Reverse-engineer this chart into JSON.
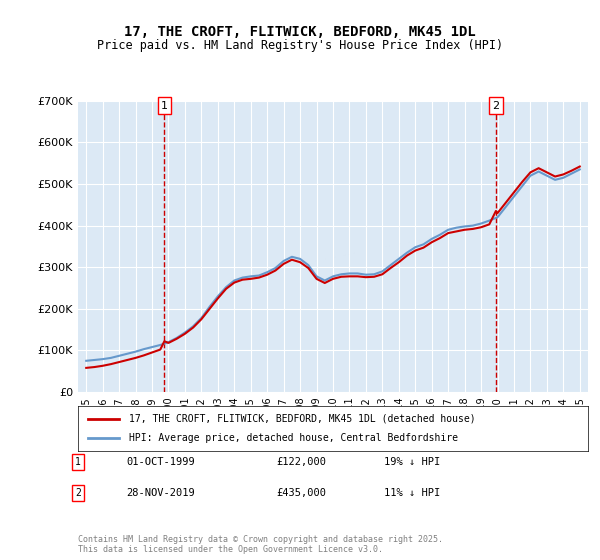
{
  "title_line1": "17, THE CROFT, FLITWICK, BEDFORD, MK45 1DL",
  "title_line2": "Price paid vs. HM Land Registry's House Price Index (HPI)",
  "ylabel": "",
  "background_color": "#dce9f5",
  "plot_bg_color": "#dce9f5",
  "grid_color": "#ffffff",
  "ylim": [
    0,
    700000
  ],
  "yticks": [
    0,
    100000,
    200000,
    300000,
    400000,
    500000,
    600000,
    700000
  ],
  "ytick_labels": [
    "£0",
    "£100K",
    "£200K",
    "£300K",
    "£400K",
    "£500K",
    "£600K",
    "£700K"
  ],
  "sale1_date": "01-OCT-1999",
  "sale1_price": 122000,
  "sale1_pct": "19% ↓ HPI",
  "sale1_x": 1999.75,
  "sale2_date": "28-NOV-2019",
  "sale2_price": 435000,
  "sale2_pct": "11% ↓ HPI",
  "sale2_x": 2019.9,
  "legend_line1": "17, THE CROFT, FLITWICK, BEDFORD, MK45 1DL (detached house)",
  "legend_line2": "HPI: Average price, detached house, Central Bedfordshire",
  "footer": "Contains HM Land Registry data © Crown copyright and database right 2025.\nThis data is licensed under the Open Government Licence v3.0.",
  "red_color": "#cc0000",
  "blue_color": "#6699cc",
  "vline_color": "#cc0000",
  "hpi_data_x": [
    1995.0,
    1995.5,
    1996.0,
    1996.5,
    1997.0,
    1997.5,
    1998.0,
    1998.5,
    1999.0,
    1999.5,
    2000.0,
    2000.5,
    2001.0,
    2001.5,
    2002.0,
    2002.5,
    2003.0,
    2003.5,
    2004.0,
    2004.5,
    2005.0,
    2005.5,
    2006.0,
    2006.5,
    2007.0,
    2007.5,
    2008.0,
    2008.5,
    2009.0,
    2009.5,
    2010.0,
    2010.5,
    2011.0,
    2011.5,
    2012.0,
    2012.5,
    2013.0,
    2013.5,
    2014.0,
    2014.5,
    2015.0,
    2015.5,
    2016.0,
    2016.5,
    2017.0,
    2017.5,
    2018.0,
    2018.5,
    2019.0,
    2019.5,
    2020.0,
    2020.5,
    2021.0,
    2021.5,
    2022.0,
    2022.5,
    2023.0,
    2023.5,
    2024.0,
    2024.5,
    2025.0
  ],
  "hpi_data_y": [
    75000,
    77000,
    79000,
    82000,
    87000,
    92000,
    97000,
    103000,
    108000,
    113000,
    120000,
    130000,
    143000,
    158000,
    178000,
    205000,
    230000,
    252000,
    268000,
    275000,
    278000,
    280000,
    288000,
    298000,
    315000,
    325000,
    320000,
    305000,
    278000,
    268000,
    278000,
    283000,
    285000,
    285000,
    282000,
    283000,
    290000,
    305000,
    320000,
    335000,
    348000,
    355000,
    368000,
    378000,
    390000,
    395000,
    398000,
    400000,
    405000,
    412000,
    420000,
    445000,
    470000,
    495000,
    520000,
    530000,
    520000,
    510000,
    515000,
    525000,
    535000
  ],
  "red_data_x": [
    1995.0,
    1995.5,
    1996.0,
    1996.5,
    1997.0,
    1997.5,
    1998.0,
    1998.5,
    1999.0,
    1999.5,
    1999.75,
    2000.0,
    2000.5,
    2001.0,
    2001.5,
    2002.0,
    2002.5,
    2003.0,
    2003.5,
    2004.0,
    2004.5,
    2005.0,
    2005.5,
    2006.0,
    2006.5,
    2007.0,
    2007.5,
    2008.0,
    2008.5,
    2009.0,
    2009.5,
    2010.0,
    2010.5,
    2011.0,
    2011.5,
    2012.0,
    2012.5,
    2013.0,
    2013.5,
    2014.0,
    2014.5,
    2015.0,
    2015.5,
    2016.0,
    2016.5,
    2017.0,
    2017.5,
    2018.0,
    2018.5,
    2019.0,
    2019.5,
    2019.9,
    2020.0,
    2020.5,
    2021.0,
    2021.5,
    2022.0,
    2022.5,
    2023.0,
    2023.5,
    2024.0,
    2024.5,
    2025.0
  ],
  "red_data_y": [
    58000,
    60000,
    63000,
    67000,
    72000,
    77000,
    82000,
    88000,
    95000,
    102000,
    122000,
    118000,
    128000,
    140000,
    155000,
    175000,
    200000,
    225000,
    248000,
    263000,
    270000,
    272000,
    275000,
    282000,
    292000,
    308000,
    318000,
    312000,
    298000,
    272000,
    262000,
    272000,
    277000,
    278000,
    278000,
    276000,
    277000,
    283000,
    298000,
    312000,
    328000,
    340000,
    347000,
    360000,
    370000,
    382000,
    386000,
    390000,
    392000,
    396000,
    403000,
    435000,
    430000,
    455000,
    480000,
    505000,
    528000,
    538000,
    528000,
    518000,
    523000,
    532000,
    542000
  ]
}
